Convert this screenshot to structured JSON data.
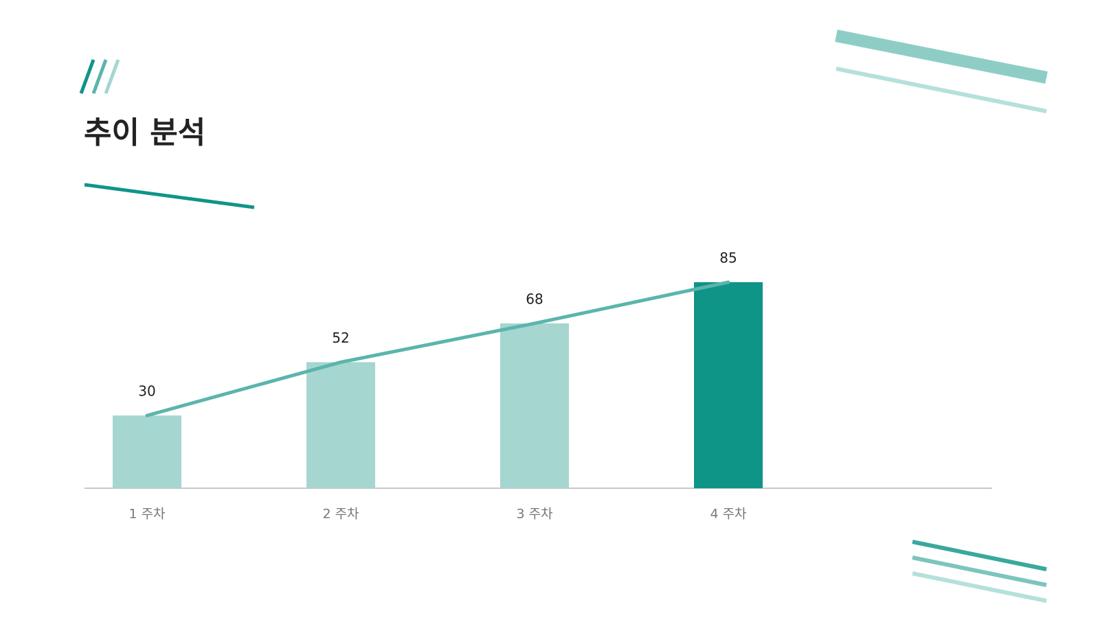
{
  "title": "추이 분석",
  "chart_data": {
    "type": "bar-line",
    "categories": [
      "1 주차",
      "2 주차",
      "3 주차",
      "4 주차"
    ],
    "values": [
      30,
      52,
      68,
      85
    ],
    "colors": [
      "#a5d6d0",
      "#a5d6d0",
      "#a5d6d0",
      "#0f9488"
    ],
    "line_color": "#5bb5ac",
    "ylim": [
      0,
      100
    ]
  }
}
